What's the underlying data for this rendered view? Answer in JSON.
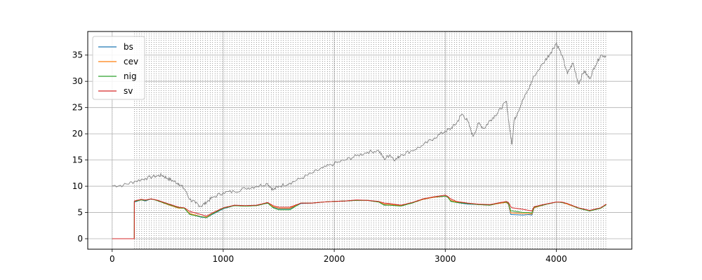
{
  "chart_data": {
    "type": "line",
    "title": "",
    "xlabel": "",
    "ylabel": "",
    "xlim": [
      -220,
      4680
    ],
    "ylim": [
      -2,
      39.5
    ],
    "xticks": [
      0,
      1000,
      2000,
      3000,
      4000
    ],
    "yticks": [
      0,
      5,
      10,
      15,
      20,
      25,
      30,
      35
    ],
    "grid": true,
    "legend": "top-left",
    "vertical_dotted_range": [
      200,
      4450
    ],
    "colors": {
      "bs": "#1f77b4",
      "cev": "#ff7f0e",
      "nig": "#2ca02c",
      "sv": "#d62728",
      "price": "#808080",
      "grid": "#b0b0b0"
    },
    "price": {
      "x": [
        0,
        100,
        200,
        300,
        400,
        450,
        500,
        550,
        600,
        650,
        700,
        750,
        800,
        850,
        900,
        1000,
        1100,
        1200,
        1300,
        1400,
        1450,
        1500,
        1600,
        1700,
        1800,
        1900,
        2000,
        2100,
        2200,
        2300,
        2400,
        2450,
        2500,
        2550,
        2600,
        2700,
        2800,
        2900,
        3000,
        3050,
        3100,
        3150,
        3200,
        3250,
        3300,
        3350,
        3400,
        3450,
        3500,
        3550,
        3580,
        3600,
        3620,
        3650,
        3700,
        3750,
        3800,
        3900,
        3950,
        4000,
        4050,
        4100,
        4150,
        4200,
        4250,
        4300,
        4350,
        4400,
        4450
      ],
      "y": [
        10.1,
        10.2,
        10.9,
        11.5,
        12.0,
        12.1,
        11.5,
        11.0,
        10.5,
        9.5,
        7.5,
        6.8,
        6.2,
        7.0,
        7.8,
        8.8,
        9.0,
        9.6,
        10.0,
        10.5,
        9.3,
        10.0,
        10.6,
        11.5,
        12.5,
        13.5,
        14.3,
        15.0,
        15.8,
        16.5,
        16.8,
        15.2,
        16.0,
        15.0,
        16.0,
        16.8,
        17.8,
        19.2,
        20.5,
        21.0,
        22.0,
        23.8,
        22.5,
        19.5,
        22.0,
        21.0,
        22.5,
        23.5,
        24.8,
        26.2,
        21.0,
        18.0,
        22.5,
        24.0,
        26.5,
        28.5,
        31.0,
        34.0,
        35.5,
        37.3,
        35.0,
        31.5,
        33.5,
        29.5,
        32.0,
        30.5,
        33.0,
        35.0,
        34.8
      ]
    },
    "series": [
      {
        "name": "bs",
        "x": [
          0,
          199,
          200,
          260,
          300,
          350,
          400,
          500,
          600,
          650,
          700,
          800,
          850,
          900,
          1000,
          1100,
          1200,
          1300,
          1400,
          1450,
          1500,
          1600,
          1700,
          1800,
          1900,
          2000,
          2100,
          2200,
          2300,
          2400,
          2450,
          2500,
          2600,
          2700,
          2800,
          2900,
          3000,
          3020,
          3050,
          3100,
          3200,
          3300,
          3400,
          3500,
          3550,
          3570,
          3590,
          3600,
          3700,
          3750,
          3780,
          3800,
          3900,
          4000,
          4050,
          4100,
          4200,
          4300,
          4400,
          4450
        ],
        "y": [
          0,
          0,
          7.0,
          7.4,
          7.2,
          7.6,
          7.3,
          6.5,
          5.8,
          5.8,
          4.7,
          4.1,
          4.0,
          4.6,
          5.7,
          6.3,
          6.2,
          6.3,
          6.8,
          6.0,
          5.7,
          5.7,
          6.7,
          6.8,
          7.0,
          7.1,
          7.2,
          7.3,
          7.3,
          7.0,
          6.5,
          6.5,
          6.3,
          6.8,
          7.5,
          7.9,
          8.1,
          8.0,
          7.2,
          6.9,
          6.6,
          6.5,
          6.4,
          6.8,
          6.9,
          6.5,
          4.6,
          4.6,
          4.5,
          4.6,
          4.5,
          5.9,
          6.5,
          7.0,
          6.9,
          6.6,
          5.8,
          5.3,
          5.8,
          6.5
        ]
      },
      {
        "name": "cev",
        "x": [
          0,
          199,
          200,
          260,
          300,
          350,
          400,
          500,
          600,
          650,
          700,
          800,
          850,
          900,
          1000,
          1100,
          1200,
          1300,
          1400,
          1450,
          1500,
          1600,
          1700,
          1800,
          1900,
          2000,
          2100,
          2200,
          2300,
          2400,
          2450,
          2500,
          2600,
          2700,
          2800,
          2900,
          3000,
          3020,
          3050,
          3100,
          3200,
          3300,
          3400,
          3500,
          3550,
          3570,
          3590,
          3600,
          3700,
          3750,
          3780,
          3800,
          3900,
          4000,
          4050,
          4100,
          4200,
          4300,
          4400,
          4450
        ],
        "y": [
          0,
          0,
          7.1,
          7.4,
          7.3,
          7.6,
          7.3,
          6.5,
          5.8,
          5.8,
          4.8,
          4.2,
          4.1,
          4.7,
          5.8,
          6.3,
          6.2,
          6.3,
          6.8,
          6.1,
          5.8,
          5.8,
          6.8,
          6.8,
          7.0,
          7.1,
          7.2,
          7.3,
          7.3,
          7.0,
          6.6,
          6.5,
          6.3,
          6.8,
          7.5,
          7.9,
          8.1,
          8.0,
          7.3,
          7.0,
          6.7,
          6.5,
          6.4,
          6.8,
          6.9,
          6.6,
          4.9,
          4.9,
          4.8,
          4.8,
          4.7,
          5.9,
          6.5,
          7.0,
          6.9,
          6.6,
          5.8,
          5.3,
          5.8,
          6.5
        ]
      },
      {
        "name": "nig",
        "x": [
          0,
          199,
          200,
          260,
          300,
          350,
          400,
          500,
          600,
          650,
          700,
          800,
          850,
          900,
          1000,
          1100,
          1200,
          1300,
          1400,
          1450,
          1500,
          1600,
          1700,
          1800,
          1900,
          2000,
          2100,
          2200,
          2300,
          2400,
          2450,
          2500,
          2600,
          2700,
          2800,
          2900,
          3000,
          3020,
          3050,
          3100,
          3200,
          3300,
          3400,
          3500,
          3550,
          3570,
          3590,
          3600,
          3700,
          3750,
          3780,
          3800,
          3900,
          4000,
          4050,
          4100,
          4200,
          4300,
          4400,
          4450
        ],
        "y": [
          0,
          0,
          7.1,
          7.4,
          7.3,
          7.6,
          7.3,
          6.6,
          5.9,
          5.8,
          4.6,
          4.2,
          4.0,
          4.7,
          5.8,
          6.3,
          6.2,
          6.3,
          6.8,
          5.9,
          5.5,
          5.5,
          6.8,
          6.8,
          7.0,
          7.1,
          7.2,
          7.3,
          7.3,
          7.0,
          6.4,
          6.4,
          6.2,
          6.8,
          7.6,
          8.0,
          8.1,
          8.0,
          7.1,
          6.9,
          6.7,
          6.5,
          6.4,
          6.9,
          7.0,
          6.7,
          5.3,
          5.3,
          5.0,
          5.0,
          4.9,
          6.0,
          6.5,
          7.0,
          6.9,
          6.7,
          5.8,
          5.3,
          5.8,
          6.5
        ]
      },
      {
        "name": "sv",
        "x": [
          0,
          199,
          200,
          260,
          300,
          350,
          400,
          500,
          600,
          650,
          700,
          800,
          850,
          900,
          1000,
          1100,
          1200,
          1300,
          1400,
          1450,
          1500,
          1600,
          1700,
          1800,
          1900,
          2000,
          2100,
          2200,
          2300,
          2400,
          2450,
          2500,
          2600,
          2700,
          2800,
          2900,
          3000,
          3020,
          3050,
          3100,
          3200,
          3300,
          3400,
          3500,
          3550,
          3570,
          3590,
          3600,
          3700,
          3750,
          3780,
          3800,
          3900,
          4000,
          4050,
          4100,
          4200,
          4300,
          4400,
          4450
        ],
        "y": [
          0,
          0,
          7.2,
          7.5,
          7.4,
          7.6,
          7.4,
          6.7,
          6.0,
          5.9,
          5.2,
          4.6,
          4.3,
          4.9,
          5.9,
          6.4,
          6.3,
          6.4,
          6.9,
          6.3,
          6.0,
          6.0,
          6.8,
          6.8,
          7.0,
          7.1,
          7.2,
          7.4,
          7.3,
          7.1,
          6.8,
          6.7,
          6.4,
          6.9,
          7.6,
          8.0,
          8.3,
          8.1,
          7.6,
          7.1,
          6.8,
          6.6,
          6.5,
          6.9,
          7.1,
          6.9,
          6.1,
          5.9,
          5.6,
          5.4,
          5.3,
          6.1,
          6.6,
          7.0,
          7.0,
          6.7,
          5.9,
          5.4,
          5.9,
          6.6
        ]
      }
    ]
  }
}
